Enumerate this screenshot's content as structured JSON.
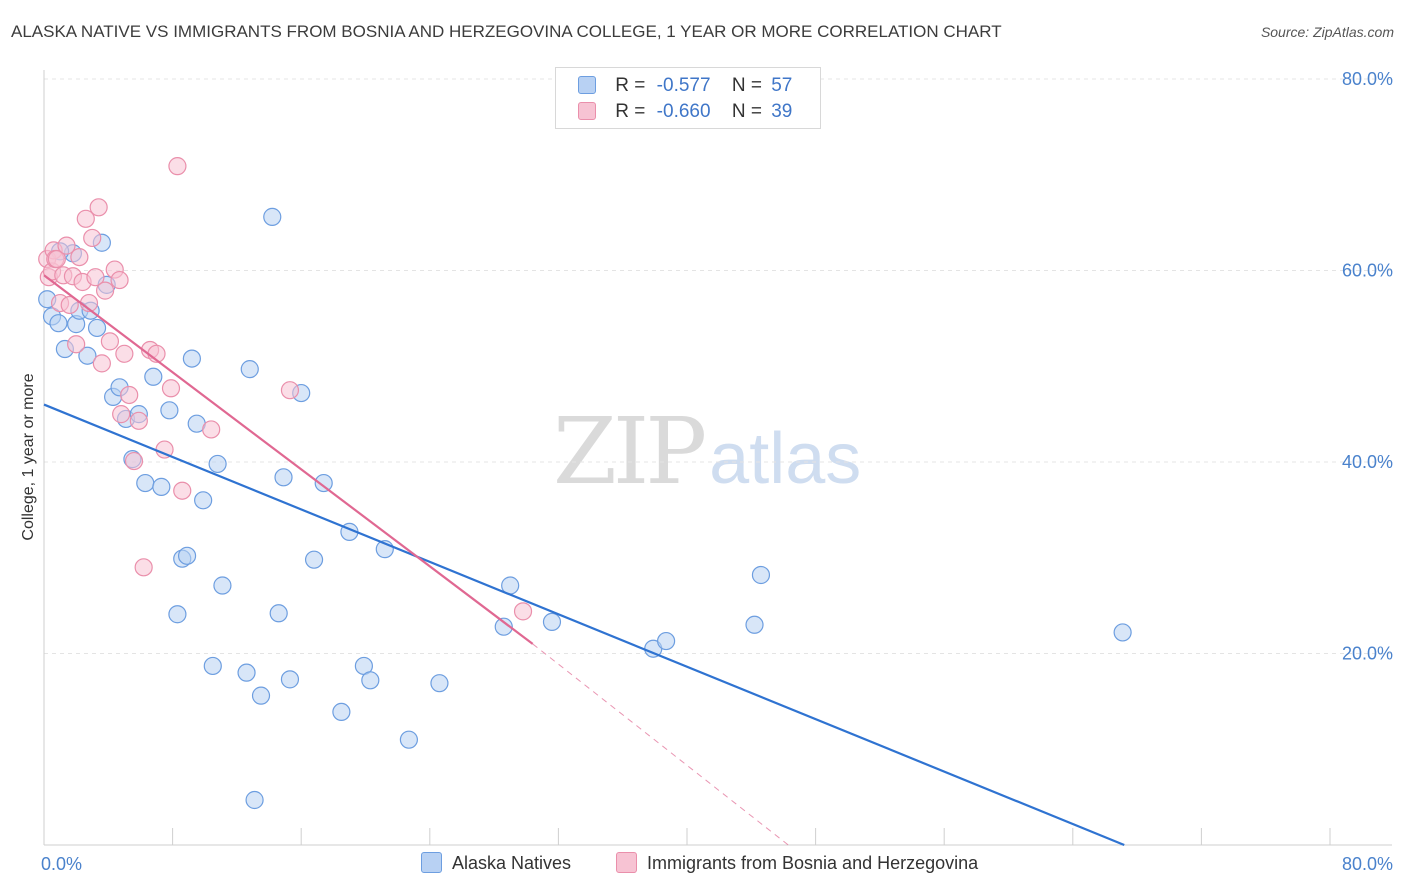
{
  "title": "ALASKA NATIVE VS IMMIGRANTS FROM BOSNIA AND HERZEGOVINA COLLEGE, 1 YEAR OR MORE CORRELATION CHART",
  "source": "Source: ZipAtlas.com",
  "watermark": {
    "zip": "ZIP",
    "atlas": "atlas"
  },
  "legend": {
    "rows": [
      {
        "r_label": "R =",
        "r_value": "-0.577",
        "n_label": "N =",
        "n_value": "57"
      },
      {
        "r_label": "R =",
        "r_value": "-0.660",
        "n_label": "N =",
        "n_value": "39"
      }
    ],
    "series_names": [
      "Alaska Natives",
      "Immigrants from Bosnia and Herzegovina"
    ]
  },
  "colors": {
    "blue_fill": "#b8d1f3",
    "blue_stroke": "#6d9ee0",
    "blue_line": "#2f73d1",
    "pink_fill": "#f7c3d3",
    "pink_stroke": "#ea8fab",
    "pink_line": "#e06892",
    "grid": "#e4e4e4",
    "tick_label": "#4a82cc"
  },
  "chart_data": {
    "type": "scatter",
    "title": "ALASKA NATIVE VS IMMIGRANTS FROM BOSNIA AND HERZEGOVINA COLLEGE, 1 YEAR OR MORE CORRELATION CHART",
    "xlabel": "",
    "ylabel": "College, 1 year or more",
    "xlim": [
      0,
      80
    ],
    "ylim": [
      0,
      80
    ],
    "x_tick_labels": [
      "0.0%",
      "80.0%"
    ],
    "y_tick_values": [
      20,
      40,
      60,
      80
    ],
    "y_tick_labels": [
      "20.0%",
      "40.0%",
      "60.0%",
      "80.0%"
    ],
    "grid": true,
    "legend_position": "top-center",
    "series": [
      {
        "name": "Alaska Natives",
        "R": -0.577,
        "N": 57,
        "points": [
          [
            0.5,
            55.2
          ],
          [
            0.9,
            54.5
          ],
          [
            1.3,
            51.8
          ],
          [
            1.8,
            61.8
          ],
          [
            2.0,
            54.4
          ],
          [
            2.2,
            55.8
          ],
          [
            2.7,
            51.1
          ],
          [
            2.9,
            55.8
          ],
          [
            3.3,
            54.0
          ],
          [
            3.6,
            62.9
          ],
          [
            3.9,
            58.5
          ],
          [
            4.3,
            46.8
          ],
          [
            4.7,
            47.8
          ],
          [
            5.1,
            44.5
          ],
          [
            5.5,
            40.3
          ],
          [
            5.9,
            45.0
          ],
          [
            6.3,
            37.8
          ],
          [
            6.8,
            48.9
          ],
          [
            7.3,
            37.4
          ],
          [
            7.8,
            45.4
          ],
          [
            8.3,
            24.1
          ],
          [
            8.6,
            29.9
          ],
          [
            8.9,
            30.2
          ],
          [
            9.2,
            50.8
          ],
          [
            9.5,
            44.0
          ],
          [
            9.9,
            36.0
          ],
          [
            10.5,
            18.7
          ],
          [
            10.8,
            39.8
          ],
          [
            11.1,
            27.1
          ],
          [
            12.6,
            18.0
          ],
          [
            12.8,
            49.7
          ],
          [
            13.1,
            4.7
          ],
          [
            13.5,
            15.6
          ],
          [
            14.2,
            65.6
          ],
          [
            14.6,
            24.2
          ],
          [
            14.9,
            38.4
          ],
          [
            15.3,
            17.3
          ],
          [
            16.0,
            47.2
          ],
          [
            16.8,
            29.8
          ],
          [
            17.4,
            37.8
          ],
          [
            18.5,
            13.9
          ],
          [
            19.0,
            32.7
          ],
          [
            19.9,
            18.7
          ],
          [
            20.3,
            17.2
          ],
          [
            21.2,
            30.9
          ],
          [
            22.7,
            11.0
          ],
          [
            24.6,
            16.9
          ],
          [
            28.6,
            22.8
          ],
          [
            29.0,
            27.1
          ],
          [
            31.6,
            23.3
          ],
          [
            37.9,
            20.5
          ],
          [
            38.7,
            21.3
          ],
          [
            44.2,
            23.0
          ],
          [
            44.6,
            28.2
          ],
          [
            67.1,
            22.2
          ],
          [
            1.0,
            62.0
          ],
          [
            0.2,
            57.0
          ]
        ]
      },
      {
        "name": "Immigrants from Bosnia and Herzegovina",
        "R": -0.66,
        "N": 39,
        "points": [
          [
            0.2,
            61.2
          ],
          [
            0.3,
            59.3
          ],
          [
            0.5,
            59.9
          ],
          [
            0.6,
            62.1
          ],
          [
            0.7,
            61.2
          ],
          [
            0.8,
            61.2
          ],
          [
            1.0,
            56.6
          ],
          [
            1.2,
            59.5
          ],
          [
            1.4,
            62.6
          ],
          [
            1.6,
            56.4
          ],
          [
            1.8,
            59.4
          ],
          [
            2.0,
            52.3
          ],
          [
            2.2,
            61.4
          ],
          [
            2.4,
            58.8
          ],
          [
            2.6,
            65.4
          ],
          [
            2.8,
            56.6
          ],
          [
            3.0,
            63.4
          ],
          [
            3.2,
            59.3
          ],
          [
            3.4,
            66.6
          ],
          [
            3.6,
            50.3
          ],
          [
            3.8,
            57.9
          ],
          [
            4.1,
            52.6
          ],
          [
            4.4,
            60.1
          ],
          [
            4.7,
            59.0
          ],
          [
            4.8,
            45.0
          ],
          [
            5.0,
            51.3
          ],
          [
            5.3,
            47.0
          ],
          [
            5.6,
            40.1
          ],
          [
            5.9,
            44.3
          ],
          [
            6.2,
            29.0
          ],
          [
            6.6,
            51.7
          ],
          [
            7.0,
            51.3
          ],
          [
            7.5,
            41.3
          ],
          [
            7.9,
            47.7
          ],
          [
            8.3,
            70.9
          ],
          [
            8.6,
            37.0
          ],
          [
            10.4,
            43.4
          ],
          [
            15.3,
            47.5
          ],
          [
            29.8,
            24.4
          ]
        ]
      }
    ],
    "trend_lines": [
      {
        "series": "Alaska Natives",
        "x": [
          0,
          67.2
        ],
        "y": [
          46.0,
          0.0
        ],
        "style": "solid"
      },
      {
        "series": "Immigrants from Bosnia and Herzegovina",
        "x": [
          0,
          30.4
        ],
        "y": [
          59.5,
          21.0
        ],
        "style": "solid"
      },
      {
        "series": "Immigrants from Bosnia and Herzegovina",
        "x": [
          30.4,
          46.3
        ],
        "y": [
          21.0,
          0.0
        ],
        "style": "dashed"
      }
    ]
  }
}
